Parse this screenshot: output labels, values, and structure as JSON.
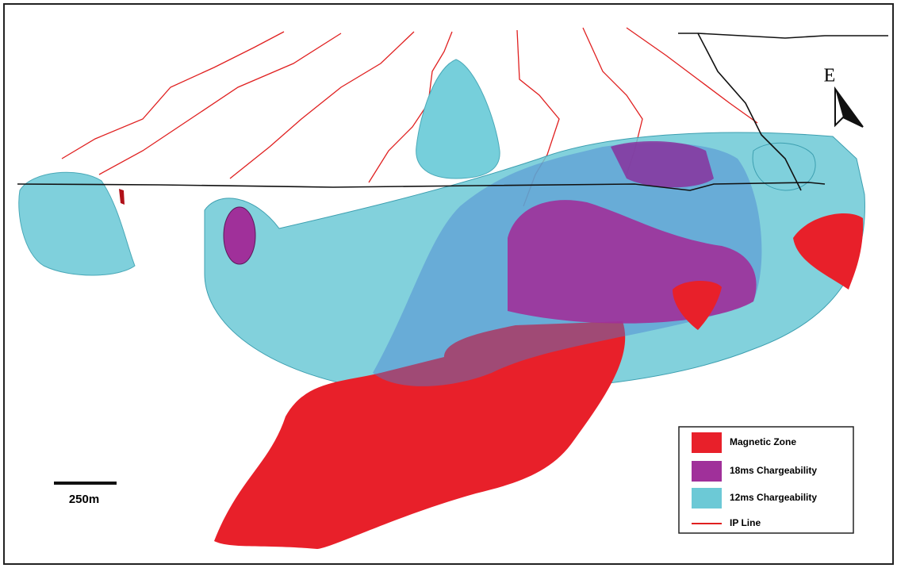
{
  "north_arrow": {
    "label": "E"
  },
  "scale_bar": {
    "label": "250m"
  },
  "legend": {
    "items": [
      {
        "label": "Magnetic Zone",
        "color": "#e8202a",
        "kind": "area"
      },
      {
        "label": "18ms Chargeability",
        "color": "#a0309a",
        "kind": "area"
      },
      {
        "label": "12ms Chargeability",
        "color": "#6cc9d6",
        "kind": "area"
      },
      {
        "label": "IP Line",
        "color": "#e02020",
        "kind": "line"
      }
    ]
  }
}
